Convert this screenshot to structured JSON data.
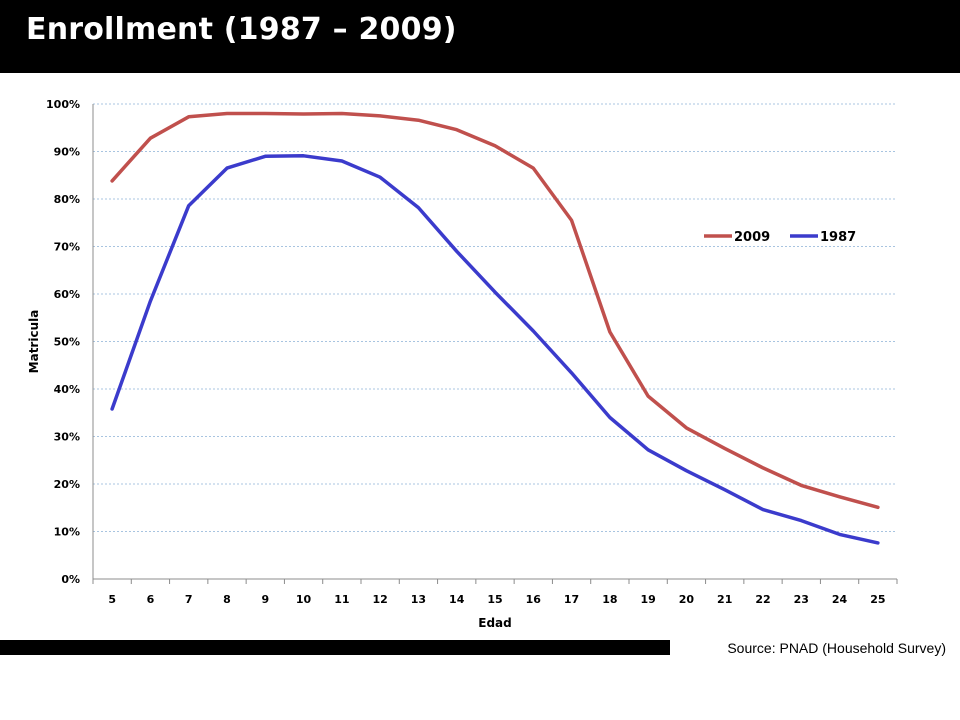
{
  "header": {
    "title": "Enrollment (1987 – 2009)"
  },
  "footer": {
    "source": "Source: PNAD (Household Survey)"
  },
  "colors": {
    "series_2009": "#c0504d",
    "series_1987": "#3b3bcc",
    "grid": "#a8c4e0",
    "axis": "#8c8c8c"
  },
  "chart_data": {
    "type": "line",
    "title": "",
    "xlabel": "Edad",
    "ylabel": "Matricula",
    "x": [
      5,
      6,
      7,
      8,
      9,
      10,
      11,
      12,
      13,
      14,
      15,
      16,
      17,
      18,
      19,
      20,
      21,
      22,
      23,
      24,
      25
    ],
    "yticks": [
      "0%",
      "10%",
      "20%",
      "30%",
      "40%",
      "50%",
      "60%",
      "70%",
      "80%",
      "90%",
      "100%"
    ],
    "ylim": [
      0,
      100
    ],
    "grid": true,
    "legend_position": "right",
    "series": [
      {
        "name": "2009",
        "values": [
          83.8,
          92.8,
          97.3,
          98.0,
          98.0,
          97.9,
          98.0,
          97.5,
          96.6,
          94.6,
          91.2,
          86.5,
          75.5,
          52.0,
          38.5,
          31.8,
          27.5,
          23.4,
          19.7,
          17.3,
          15.1
        ]
      },
      {
        "name": "1987",
        "values": [
          35.8,
          58.5,
          78.6,
          86.5,
          89.0,
          89.1,
          88.0,
          84.6,
          78.2,
          69.0,
          60.4,
          52.2,
          43.4,
          34.0,
          27.2,
          22.8,
          18.8,
          14.6,
          12.3,
          9.4,
          7.6
        ]
      }
    ]
  }
}
